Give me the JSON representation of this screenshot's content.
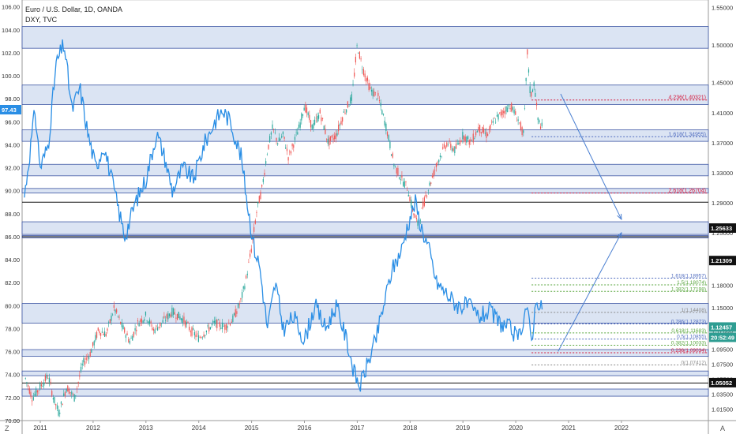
{
  "legend": {
    "main": "Euro / U.S. Dollar, 1D, OANDA",
    "compare": "DXY, TVC"
  },
  "corner": {
    "left": "Z",
    "right": "A"
  },
  "colors": {
    "dxy": "#2a8ee5",
    "band_fill": "#dbe4f3",
    "band_edge": "#3d56a3",
    "up": "#26a69a",
    "down": "#ef5350",
    "red_fib": "#d5173a",
    "blue_fib": "#4f6bbf",
    "green_fib": "#5aa63f",
    "arrow": "#4a7fd1"
  },
  "chart_data": {
    "type": "line",
    "x_ticks": [
      "2011",
      "2012",
      "2013",
      "2014",
      "2015",
      "2016",
      "2017",
      "2018",
      "2019",
      "2020",
      "2021",
      "2022"
    ],
    "left_axis": {
      "range": [
        70.0,
        106.6
      ],
      "ticks": [
        "106.00",
        "104.00",
        "102.00",
        "100.00",
        "98.00",
        "96.00",
        "94.00",
        "92.00",
        "90.00",
        "88.00",
        "86.00",
        "84.00",
        "82.00",
        "80.00",
        "78.00",
        "76.00",
        "74.00",
        "72.00",
        "70.00"
      ]
    },
    "right_axis": {
      "range": [
        1.0,
        1.56
      ],
      "ticks": [
        "1.55000",
        "1.50000",
        "1.45000",
        "1.41000",
        "1.37000",
        "1.33000",
        "1.29000",
        "1.25000",
        "1.21000",
        "1.18000",
        "1.15000",
        "1.12000",
        "1.09500",
        "1.07500",
        "1.05500",
        "1.03500",
        "1.01500"
      ]
    },
    "price_labels": {
      "dxy_last": "97.43",
      "r1": "1.25633",
      "r2": "1.21309",
      "last": "1.12457",
      "countdown": "20:52:49",
      "s1": "1.05052"
    },
    "bands_dxy": [
      [
        102.4,
        104.3
      ],
      [
        97.5,
        99.2
      ],
      [
        94.3,
        95.3
      ],
      [
        91.3,
        92.3
      ],
      [
        89.8,
        90.2
      ],
      [
        86.2,
        87.3
      ],
      [
        85.9,
        86.1
      ]
    ],
    "bands_eur": [
      [
        1.1297,
        1.156
      ],
      [
        1.0855,
        1.0945
      ],
      [
        1.0598,
        1.066
      ],
      [
        1.0325,
        1.042
      ]
    ],
    "black_lines": [
      [
        "dxy",
        89.0
      ],
      [
        "dxy",
        86.0
      ],
      [
        "eur",
        1.05
      ]
    ],
    "fib_upper": [
      {
        "label": "4.236(1.40321)",
        "level": 97.9,
        "color": "red"
      },
      {
        "label": "1.618(1.34955)",
        "level": 94.7,
        "color": "blue"
      },
      {
        "label": "2.618(1.26704)",
        "level": 89.8,
        "color": "red"
      }
    ],
    "fib_lower": [
      {
        "label": "1.618(1.18957)",
        "level": 1.1896,
        "color": "blue"
      },
      {
        "label": "1.5(1.18074)",
        "level": 1.1807,
        "color": "green"
      },
      {
        "label": "1.382(1.17198)",
        "level": 1.172,
        "color": "green"
      },
      {
        "label": "1(1.14408)",
        "level": 1.1441,
        "color": "gray"
      },
      {
        "label": "0.786(1.12873)",
        "level": 1.1287,
        "color": "blue"
      },
      {
        "label": "0.618(1.11683)",
        "level": 1.1168,
        "color": "green"
      },
      {
        "label": "0.5(1.10855)",
        "level": 1.1085,
        "color": "blue"
      },
      {
        "label": "0.382(1.10033)",
        "level": 1.1003,
        "color": "green"
      },
      {
        "label": "0.236(1.09034)",
        "level": 1.0903,
        "color": "red"
      },
      {
        "label": "0(1.07412)",
        "level": 1.0741,
        "color": "gray"
      }
    ],
    "dxy_path": [
      [
        2010.7,
        89.5
      ],
      [
        2010.9,
        97
      ],
      [
        2011.0,
        92
      ],
      [
        2011.15,
        94
      ],
      [
        2011.3,
        101
      ],
      [
        2011.45,
        102.8
      ],
      [
        2011.6,
        97
      ],
      [
        2011.75,
        99
      ],
      [
        2011.9,
        95
      ],
      [
        2012.05,
        92
      ],
      [
        2012.2,
        94
      ],
      [
        2012.35,
        91
      ],
      [
        2012.5,
        88
      ],
      [
        2012.6,
        86
      ],
      [
        2012.8,
        89
      ],
      [
        2013.0,
        91
      ],
      [
        2013.2,
        95
      ],
      [
        2013.35,
        93
      ],
      [
        2013.5,
        90
      ],
      [
        2013.7,
        92
      ],
      [
        2013.9,
        91
      ],
      [
        2014.1,
        94
      ],
      [
        2014.3,
        96
      ],
      [
        2014.45,
        97
      ],
      [
        2014.6,
        96
      ],
      [
        2014.8,
        93
      ],
      [
        2014.95,
        88
      ],
      [
        2015.05,
        85
      ],
      [
        2015.15,
        83.5
      ],
      [
        2015.3,
        78
      ],
      [
        2015.45,
        82
      ],
      [
        2015.6,
        78
      ],
      [
        2015.8,
        79
      ],
      [
        2016.0,
        77
      ],
      [
        2016.2,
        80
      ],
      [
        2016.4,
        78
      ],
      [
        2016.6,
        80
      ],
      [
        2016.8,
        77
      ],
      [
        2016.95,
        74
      ],
      [
        2017.05,
        73
      ],
      [
        2017.2,
        75
      ],
      [
        2017.35,
        77
      ],
      [
        2017.5,
        80
      ],
      [
        2017.65,
        83
      ],
      [
        2017.85,
        85
      ],
      [
        2017.95,
        87
      ],
      [
        2018.1,
        89
      ],
      [
        2018.2,
        87
      ],
      [
        2018.35,
        85
      ],
      [
        2018.5,
        82
      ],
      [
        2018.7,
        81
      ],
      [
        2018.9,
        80
      ],
      [
        2019.1,
        80
      ],
      [
        2019.3,
        79
      ],
      [
        2019.5,
        79.5
      ],
      [
        2019.7,
        78.5
      ],
      [
        2019.9,
        78
      ],
      [
        2020.05,
        77
      ],
      [
        2020.2,
        80
      ],
      [
        2020.3,
        77
      ],
      [
        2020.4,
        81
      ],
      [
        2020.45,
        79.5
      ],
      [
        2020.5,
        80
      ]
    ],
    "eur_path": [
      [
        2010.7,
        1.06
      ],
      [
        2010.85,
        1.03
      ],
      [
        2011.0,
        1.045
      ],
      [
        2011.15,
        1.06
      ],
      [
        2011.25,
        1.03
      ],
      [
        2011.35,
        1.01
      ],
      [
        2011.5,
        1.045
      ],
      [
        2011.65,
        1.03
      ],
      [
        2011.8,
        1.075
      ],
      [
        2011.95,
        1.09
      ],
      [
        2012.1,
        1.12
      ],
      [
        2012.25,
        1.115
      ],
      [
        2012.4,
        1.15
      ],
      [
        2012.55,
        1.125
      ],
      [
        2012.7,
        1.105
      ],
      [
        2012.85,
        1.13
      ],
      [
        2013.0,
        1.14
      ],
      [
        2013.15,
        1.12
      ],
      [
        2013.3,
        1.13
      ],
      [
        2013.5,
        1.145
      ],
      [
        2013.7,
        1.135
      ],
      [
        2013.85,
        1.12
      ],
      [
        2014.0,
        1.11
      ],
      [
        2014.15,
        1.12
      ],
      [
        2014.3,
        1.13
      ],
      [
        2014.5,
        1.125
      ],
      [
        2014.65,
        1.135
      ],
      [
        2014.8,
        1.16
      ],
      [
        2014.9,
        1.19
      ],
      [
        2015.0,
        1.23
      ],
      [
        2015.1,
        1.28
      ],
      [
        2015.2,
        1.31
      ],
      [
        2015.3,
        1.36
      ],
      [
        2015.4,
        1.39
      ],
      [
        2015.5,
        1.37
      ],
      [
        2015.6,
        1.38
      ],
      [
        2015.7,
        1.35
      ],
      [
        2015.8,
        1.37
      ],
      [
        2015.9,
        1.39
      ],
      [
        2016.0,
        1.42
      ],
      [
        2016.15,
        1.39
      ],
      [
        2016.3,
        1.41
      ],
      [
        2016.45,
        1.37
      ],
      [
        2016.6,
        1.38
      ],
      [
        2016.75,
        1.41
      ],
      [
        2016.9,
        1.43
      ],
      [
        2017.0,
        1.5
      ],
      [
        2017.1,
        1.47
      ],
      [
        2017.25,
        1.44
      ],
      [
        2017.4,
        1.43
      ],
      [
        2017.55,
        1.39
      ],
      [
        2017.7,
        1.34
      ],
      [
        2017.85,
        1.32
      ],
      [
        2017.95,
        1.31
      ],
      [
        2018.05,
        1.28
      ],
      [
        2018.15,
        1.26
      ],
      [
        2018.3,
        1.3
      ],
      [
        2018.4,
        1.32
      ],
      [
        2018.55,
        1.35
      ],
      [
        2018.7,
        1.37
      ],
      [
        2018.85,
        1.36
      ],
      [
        2019.0,
        1.38
      ],
      [
        2019.15,
        1.37
      ],
      [
        2019.3,
        1.39
      ],
      [
        2019.45,
        1.38
      ],
      [
        2019.6,
        1.4
      ],
      [
        2019.75,
        1.41
      ],
      [
        2019.9,
        1.42
      ],
      [
        2020.05,
        1.4
      ],
      [
        2020.15,
        1.38
      ],
      [
        2020.22,
        1.49
      ],
      [
        2020.28,
        1.43
      ],
      [
        2020.35,
        1.45
      ],
      [
        2020.42,
        1.4
      ],
      [
        2020.5,
        1.39
      ]
    ],
    "arrows": [
      {
        "from": [
          2020.85,
          1.435
        ],
        "to": [
          2022.0,
          1.268
        ]
      },
      {
        "from": [
          2020.8,
          1.092
        ],
        "to": [
          2022.0,
          1.25
        ]
      }
    ]
  }
}
